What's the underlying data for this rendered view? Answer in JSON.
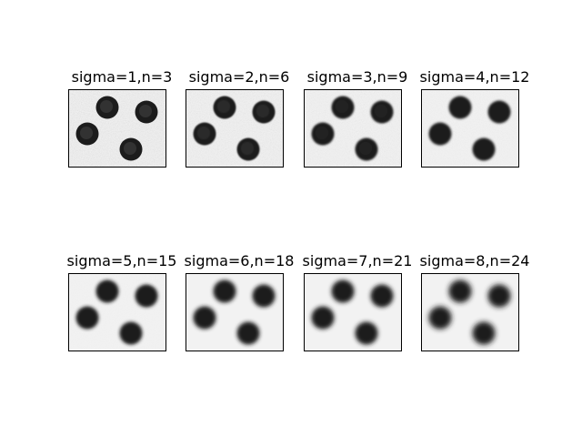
{
  "figure": {
    "panels": [
      {
        "title": "sigma=1,n=3",
        "sigma": 1,
        "n": 3
      },
      {
        "title": "sigma=2,n=6",
        "sigma": 2,
        "n": 6
      },
      {
        "title": "sigma=3,n=9",
        "sigma": 3,
        "n": 9
      },
      {
        "title": "sigma=4,n=12",
        "sigma": 4,
        "n": 12
      },
      {
        "title": "sigma=5,n=15",
        "sigma": 5,
        "n": 15
      },
      {
        "title": "sigma=6,n=18",
        "sigma": 6,
        "n": 18
      },
      {
        "title": "sigma=7,n=21",
        "sigma": 7,
        "n": 21
      },
      {
        "title": "sigma=8,n=24",
        "sigma": 8,
        "n": 24
      }
    ],
    "colors": {
      "background": "#f2f2f2",
      "coin": "#1e1e1e",
      "border": "#000000"
    }
  }
}
